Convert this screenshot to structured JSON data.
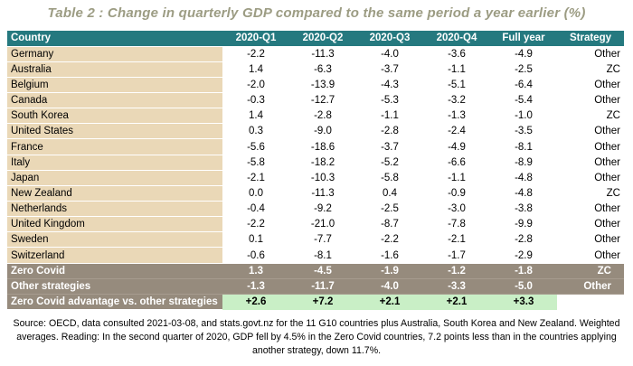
{
  "title": "Table 2 : Change in quarterly GDP compared to the same period a year earlier (%)",
  "headers": [
    "Country",
    "2020-Q1",
    "2020-Q2",
    "2020-Q3",
    "2020-Q4",
    "Full year",
    "Strategy"
  ],
  "rows": [
    {
      "country": "Germany",
      "q1": "-2.2",
      "q2": "-11.3",
      "q3": "-4.0",
      "q4": "-3.6",
      "year": "-4.9",
      "strategy": "Other"
    },
    {
      "country": "Australia",
      "q1": "1.4",
      "q2": "-6.3",
      "q3": "-3.7",
      "q4": "-1.1",
      "year": "-2.5",
      "strategy": "ZC"
    },
    {
      "country": "Belgium",
      "q1": "-2.0",
      "q2": "-13.9",
      "q3": "-4.3",
      "q4": "-5.1",
      "year": "-6.4",
      "strategy": "Other"
    },
    {
      "country": "Canada",
      "q1": "-0.3",
      "q2": "-12.7",
      "q3": "-5.3",
      "q4": "-3.2",
      "year": "-5.4",
      "strategy": "Other"
    },
    {
      "country": "South Korea",
      "q1": "1.4",
      "q2": "-2.8",
      "q3": "-1.1",
      "q4": "-1.3",
      "year": "-1.0",
      "strategy": "ZC"
    },
    {
      "country": "United States",
      "q1": "0.3",
      "q2": "-9.0",
      "q3": "-2.8",
      "q4": "-2.4",
      "year": "-3.5",
      "strategy": "Other"
    },
    {
      "country": "France",
      "q1": "-5.6",
      "q2": "-18.6",
      "q3": "-3.7",
      "q4": "-4.9",
      "year": "-8.1",
      "strategy": "Other"
    },
    {
      "country": "Italy",
      "q1": "-5.8",
      "q2": "-18.2",
      "q3": "-5.2",
      "q4": "-6.6",
      "year": "-8.9",
      "strategy": "Other"
    },
    {
      "country": "Japan",
      "q1": "-2.1",
      "q2": "-10.3",
      "q3": "-5.8",
      "q4": "-1.1",
      "year": "-4.8",
      "strategy": "Other"
    },
    {
      "country": "New Zealand",
      "q1": "0.0",
      "q2": "-11.3",
      "q3": "0.4",
      "q4": "-0.9",
      "year": "-4.8",
      "strategy": "ZC"
    },
    {
      "country": "Netherlands",
      "q1": "-0.4",
      "q2": "-9.2",
      "q3": "-2.5",
      "q4": "-3.0",
      "year": "-3.8",
      "strategy": "Other"
    },
    {
      "country": "United Kingdom",
      "q1": "-2.2",
      "q2": "-21.0",
      "q3": "-8.7",
      "q4": "-7.8",
      "year": "-9.9",
      "strategy": "Other"
    },
    {
      "country": "Sweden",
      "q1": "0.1",
      "q2": "-7.7",
      "q3": "-2.2",
      "q4": "-2.1",
      "year": "-2.8",
      "strategy": "Other"
    },
    {
      "country": "Switzerland",
      "q1": "-0.6",
      "q2": "-8.1",
      "q3": "-1.6",
      "q4": "-1.7",
      "year": "-2.9",
      "strategy": "Other"
    }
  ],
  "summary": [
    {
      "label": "Zero Covid",
      "q1": "1.3",
      "q2": "-4.5",
      "q3": "-1.9",
      "q4": "-1.2",
      "year": "-1.8",
      "strategy": "ZC"
    },
    {
      "label": "Other strategies",
      "q1": "-1.3",
      "q2": "-11.7",
      "q3": "-4.0",
      "q4": "-3.3",
      "year": "-5.0",
      "strategy": "Other"
    }
  ],
  "advantage": {
    "label": "Zero Covid advantage vs. other strategies",
    "q1": "+2.6",
    "q2": "+7.2",
    "q3": "+2.1",
    "q4": "+2.1",
    "year": "+3.3"
  },
  "source_text": "Source: OECD, data consulted 2021-03-08, and stats.govt.nz for the 11 G10 countries plus Australia, South Korea and New Zealand. Weighted averages. Reading: In the second quarter of 2020, GDP fell by 4.5% in the Zero Covid countries, 7.2 points less than in the countries applying another strategy, down 11.7%.",
  "colors": {
    "header": "#25797f",
    "country_cell": "#ead8b7",
    "summary": "#968b7d",
    "advantage": "#c9efc6",
    "title": "#9c9c83"
  }
}
